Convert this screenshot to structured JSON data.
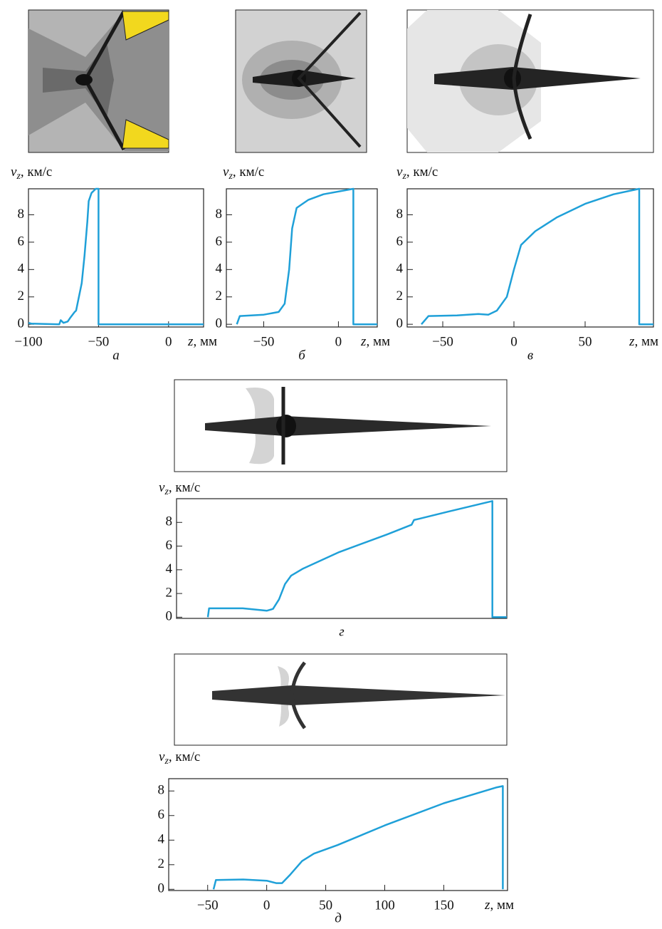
{
  "chart_data": [
    {
      "type": "line",
      "caption": "а",
      "ylabel": {
        "var": "v",
        "sub": "z",
        "rest": ", км/с"
      },
      "xlabel": {
        "var": "z",
        "rest": ", мм"
      },
      "xlim": [
        -100,
        25
      ],
      "ylim": [
        -0.2,
        9.9
      ],
      "xticks": [
        {
          "value": -100,
          "label": "−100"
        },
        {
          "value": -50,
          "label": "−50"
        },
        0
      ],
      "yticks": [
        0,
        2,
        4,
        6,
        8
      ],
      "color": "#1fa0d8",
      "series": [
        {
          "x": [
            -100,
            -98,
            -78,
            -77,
            -75,
            -72,
            -70,
            -67,
            -66,
            -65,
            -62,
            -60,
            -58,
            -57,
            -55,
            -52,
            -50,
            -50,
            25
          ],
          "values": [
            0.1,
            0.05,
            0,
            0.3,
            0.1,
            0.2,
            0.5,
            0.9,
            1.0,
            1.5,
            3,
            5,
            7.5,
            9,
            9.6,
            9.9,
            9.9,
            0,
            0
          ]
        }
      ]
    },
    {
      "type": "line",
      "caption": "б",
      "ylabel": {
        "var": "v",
        "sub": "z",
        "rest": ", км/с"
      },
      "xlabel": {
        "var": "z",
        "rest": ", мм"
      },
      "xlim": [
        -75,
        26
      ],
      "ylim": [
        -0.2,
        9.9
      ],
      "xticks": [
        {
          "value": -50,
          "label": "−50"
        },
        0
      ],
      "yticks": [
        0,
        2,
        4,
        6,
        8
      ],
      "color": "#1fa0d8",
      "series": [
        {
          "x": [
            -68,
            -66,
            -50,
            -40,
            -36,
            -33,
            -31,
            -28,
            -24,
            -20,
            -10,
            10,
            10,
            26
          ],
          "values": [
            0,
            0.6,
            0.7,
            0.9,
            1.5,
            4,
            7,
            8.5,
            8.8,
            9.1,
            9.5,
            9.9,
            0,
            0
          ]
        }
      ]
    },
    {
      "type": "line",
      "caption": "в",
      "ylabel": {
        "var": "v",
        "sub": "z",
        "rest": ", км/с"
      },
      "xlabel": {
        "var": "z",
        "rest": ", мм"
      },
      "xlim": [
        -75,
        98
      ],
      "ylim": [
        -0.2,
        9.9
      ],
      "xticks": [
        {
          "value": -50,
          "label": "−50"
        },
        0,
        50
      ],
      "yticks": [
        0,
        2,
        4,
        6,
        8
      ],
      "color": "#1fa0d8",
      "series": [
        {
          "x": [
            -65,
            -60,
            -40,
            -25,
            -18,
            -12,
            -5,
            0,
            5,
            15,
            30,
            50,
            70,
            88,
            88,
            98
          ],
          "values": [
            0,
            0.6,
            0.65,
            0.75,
            0.7,
            1,
            2,
            4,
            5.8,
            6.8,
            7.8,
            8.8,
            9.5,
            9.9,
            0,
            0
          ]
        }
      ]
    },
    {
      "type": "line",
      "caption": "г",
      "ylabel": {
        "var": "v",
        "sub": "z",
        "rest": ", км/с"
      },
      "xlim": [
        -75,
        199
      ],
      "ylim": [
        -0.1,
        10
      ],
      "yticks": [
        0,
        2,
        4,
        6,
        8
      ],
      "color": "#1fa0d8",
      "series": [
        {
          "x": [
            -49,
            -48,
            -20,
            -5,
            0,
            5,
            10,
            15,
            20,
            30,
            60,
            100,
            120,
            122,
            126,
            150,
            187,
            187,
            199
          ],
          "values": [
            0,
            0.75,
            0.75,
            0.6,
            0.55,
            0.7,
            1.5,
            2.8,
            3.5,
            4.1,
            5.5,
            7,
            7.8,
            8.2,
            8.3,
            8.9,
            9.8,
            0,
            0
          ]
        }
      ]
    },
    {
      "type": "line",
      "caption": "д",
      "ylabel": {
        "var": "v",
        "sub": "z",
        "rest": ", км/с"
      },
      "xlabel": {
        "var": "z",
        "rest": ", мм"
      },
      "xlim": [
        -83,
        204
      ],
      "ylim": [
        -0.1,
        9
      ],
      "xticks": [
        {
          "value": -50,
          "label": "−50"
        },
        0,
        50,
        100,
        150
      ],
      "yticks": [
        0,
        2,
        4,
        6,
        8
      ],
      "color": "#1fa0d8",
      "series": [
        {
          "x": [
            -45,
            -43,
            -20,
            0,
            8,
            13,
            20,
            30,
            40,
            60,
            100,
            150,
            195,
            200,
            200
          ],
          "values": [
            0,
            0.75,
            0.8,
            0.7,
            0.5,
            0.5,
            1.2,
            2.3,
            2.9,
            3.6,
            5.2,
            7.0,
            8.3,
            8.4,
            0
          ]
        }
      ]
    }
  ]
}
